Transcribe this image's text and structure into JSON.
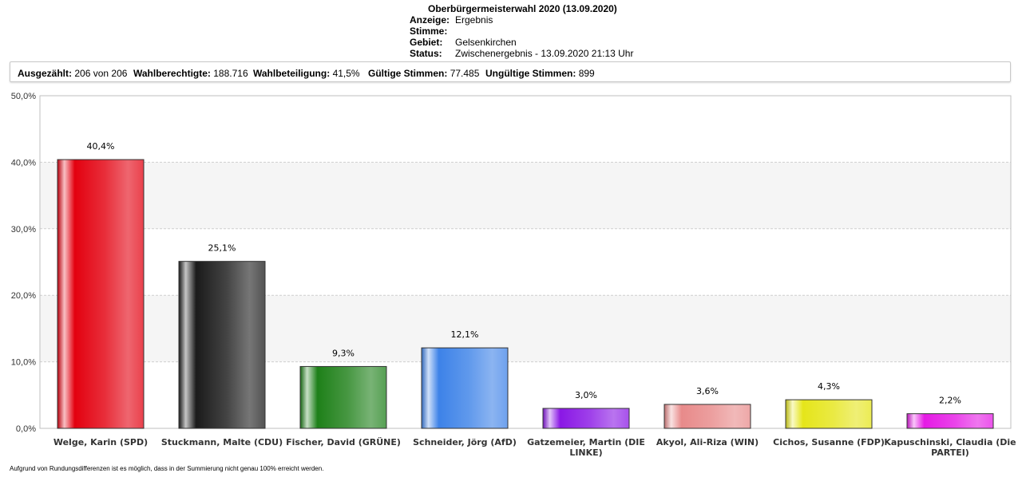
{
  "header": {
    "title": "Oberbürgermeisterwahl 2020 (13.09.2020)",
    "rows": [
      {
        "key": "Anzeige:",
        "value": "Ergebnis"
      },
      {
        "key": "Stimme:",
        "value": ""
      },
      {
        "key": "Gebiet:",
        "value": "Gelsenkirchen"
      },
      {
        "key": "Status:",
        "value": "Zwischenergebnis - 13.09.2020 21:13 Uhr"
      }
    ]
  },
  "stats": [
    {
      "label": "Ausgezählt:",
      "value": "206 von 206"
    },
    {
      "label": "Wahlberechtigte:",
      "value": "188.716"
    },
    {
      "label": "Wahlbeteiligung:",
      "value": "41,5%"
    },
    {
      "label": "Gültige Stimmen:",
      "value": "77.485"
    },
    {
      "label": "Ungültige Stimmen:",
      "value": "899"
    }
  ],
  "chart_data": {
    "type": "bar",
    "categories": [
      "Welge, Karin (SPD)",
      "Stuckmann, Malte (CDU)",
      "Fischer, David (GRÜNE)",
      "Schneider, Jörg (AfD)",
      "Gatzemeier, Martin (DIE LINKE)",
      "Akyol, Ali-Riza (WIN)",
      "Cichos, Susanne (FDP)",
      "Kapuschinski, Claudia (Die PARTEI)"
    ],
    "category_lines": [
      [
        "Welge, Karin (SPD)"
      ],
      [
        "Stuckmann, Malte (CDU)"
      ],
      [
        "Fischer, David (GRÜNE)"
      ],
      [
        "Schneider, Jörg (AfD)"
      ],
      [
        "Gatzemeier, Martin (DIE",
        "LINKE)"
      ],
      [
        "Akyol, Ali-Riza (WIN)"
      ],
      [
        "Cichos, Susanne (FDP)"
      ],
      [
        "Kapuschinski, Claudia (Die",
        "PARTEI)"
      ]
    ],
    "values": [
      40.4,
      25.1,
      9.3,
      12.1,
      3.0,
      3.6,
      4.3,
      2.2
    ],
    "value_labels": [
      "40,4%",
      "25,1%",
      "9,3%",
      "12,1%",
      "3,0%",
      "3,6%",
      "4,3%",
      "2,2%"
    ],
    "colors": [
      "#e3000f",
      "#1a1a1a",
      "#1e8019",
      "#3d82e8",
      "#8a17e5",
      "#e88a8a",
      "#e5e51a",
      "#e51ae5"
    ],
    "ylim": [
      0,
      50
    ],
    "yticks": [
      0,
      10,
      20,
      30,
      40,
      50
    ],
    "ytick_labels": [
      "0,0%",
      "10,0%",
      "20,0%",
      "30,0%",
      "40,0%",
      "50,0%"
    ],
    "grid": true
  },
  "footnote": "Aufgrund von Rundungsdifferenzen ist es möglich, dass in der Summierung nicht genau 100% erreicht werden."
}
